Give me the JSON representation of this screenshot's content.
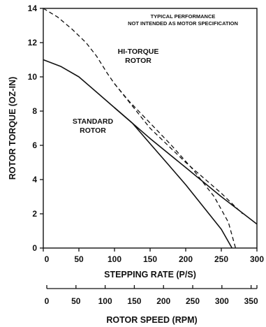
{
  "chart_data": {
    "type": "line",
    "xlabel": "STEPPING RATE (P/S)",
    "ylabel": "ROTOR TORQUE (OZ-IN)",
    "x2label": "ROTOR SPEED (RPM)",
    "xlim": [
      0,
      300
    ],
    "ylim": [
      0,
      14
    ],
    "x2lim": [
      0,
      360
    ],
    "x_ticks": [
      0,
      50,
      100,
      150,
      200,
      250,
      300
    ],
    "y_ticks": [
      0,
      2,
      4,
      6,
      8,
      10,
      12,
      14
    ],
    "x2_ticks": [
      0,
      50,
      100,
      150,
      200,
      250,
      300,
      350
    ],
    "grid": false,
    "annotation": [
      "TYPICAL PERFORMANCE",
      "NOT INTENDED AS MOTOR SPECIFICATION"
    ],
    "series": [
      {
        "name": "HI-TORQUE ROTOR",
        "style": "dashed",
        "x": [
          0,
          20,
          40,
          60,
          75,
          90,
          100,
          120,
          150,
          180,
          210,
          240,
          260,
          270
        ],
        "y": [
          14.0,
          13.5,
          12.8,
          12.0,
          11.2,
          10.2,
          9.6,
          8.6,
          7.3,
          6.0,
          4.6,
          3.0,
          1.5,
          0.0
        ]
      },
      {
        "name": "HI-TORQUE ROTOR",
        "style": "dashed",
        "x": [
          100,
          150,
          200,
          250,
          280
        ],
        "y": [
          9.6,
          7.0,
          5.0,
          3.2,
          2.0
        ]
      },
      {
        "name": "STANDARD ROTOR",
        "style": "solid",
        "x": [
          0,
          25,
          50,
          75,
          100,
          125,
          150,
          175,
          200,
          225,
          250,
          265
        ],
        "y": [
          11.0,
          10.6,
          10.0,
          9.1,
          8.2,
          7.3,
          6.1,
          4.9,
          3.7,
          2.4,
          1.1,
          0.0
        ]
      },
      {
        "name": "STANDARD ROTOR",
        "style": "solid",
        "x": [
          100,
          150,
          200,
          250,
          300
        ],
        "y": [
          8.2,
          6.4,
          4.7,
          3.0,
          1.4
        ]
      }
    ]
  }
}
